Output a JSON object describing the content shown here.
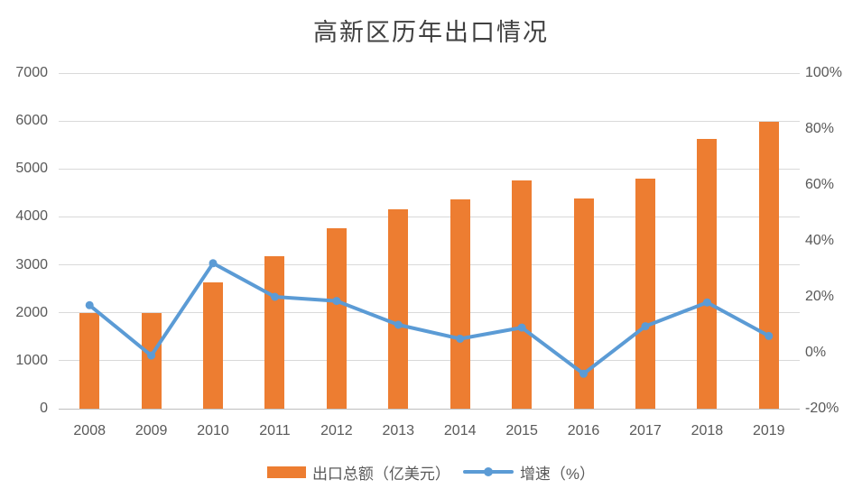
{
  "title": "高新区历年出口情况",
  "colors": {
    "bar": "#ED7D31",
    "line": "#5B9BD5",
    "gridline": "#D9D9D9",
    "axis_line": "#BFBFBF",
    "label": "#595959",
    "title": "#404040",
    "background": "#FFFFFF"
  },
  "legend": {
    "items": [
      {
        "type": "bar",
        "label": "出口总额（亿美元）"
      },
      {
        "type": "line",
        "label": "增速（%）"
      }
    ]
  },
  "chart_data": {
    "type": "bar",
    "subtype": "bar+line combo, dual axis",
    "title": "高新区历年出口情况",
    "categories": [
      "2008",
      "2009",
      "2010",
      "2011",
      "2012",
      "2013",
      "2014",
      "2015",
      "2016",
      "2017",
      "2018",
      "2019"
    ],
    "series": [
      {
        "name": "出口总额（亿美元）",
        "type": "bar",
        "axis": "left",
        "values": [
          2000,
          2000,
          2640,
          3180,
          3770,
          4150,
          4370,
          4770,
          4380,
          4790,
          5630,
          5980
        ]
      },
      {
        "name": "增速（%）",
        "type": "line",
        "axis": "right",
        "values": [
          17,
          -1,
          32,
          20,
          18.5,
          10,
          5,
          9,
          -7.5,
          9.5,
          18,
          6
        ]
      }
    ],
    "left_axis": {
      "min": 0,
      "max": 7000,
      "ticks": [
        0,
        1000,
        2000,
        3000,
        4000,
        5000,
        6000,
        7000
      ],
      "tick_labels": [
        "0",
        "1000",
        "2000",
        "3000",
        "4000",
        "5000",
        "6000",
        "7000"
      ]
    },
    "right_axis": {
      "min": -20,
      "max": 100,
      "ticks": [
        -20,
        0,
        20,
        40,
        60,
        80,
        100
      ],
      "tick_labels": [
        "-20%",
        "0%",
        "20%",
        "40%",
        "60%",
        "80%",
        "100%"
      ]
    },
    "grid": true,
    "legend_position": "bottom"
  }
}
